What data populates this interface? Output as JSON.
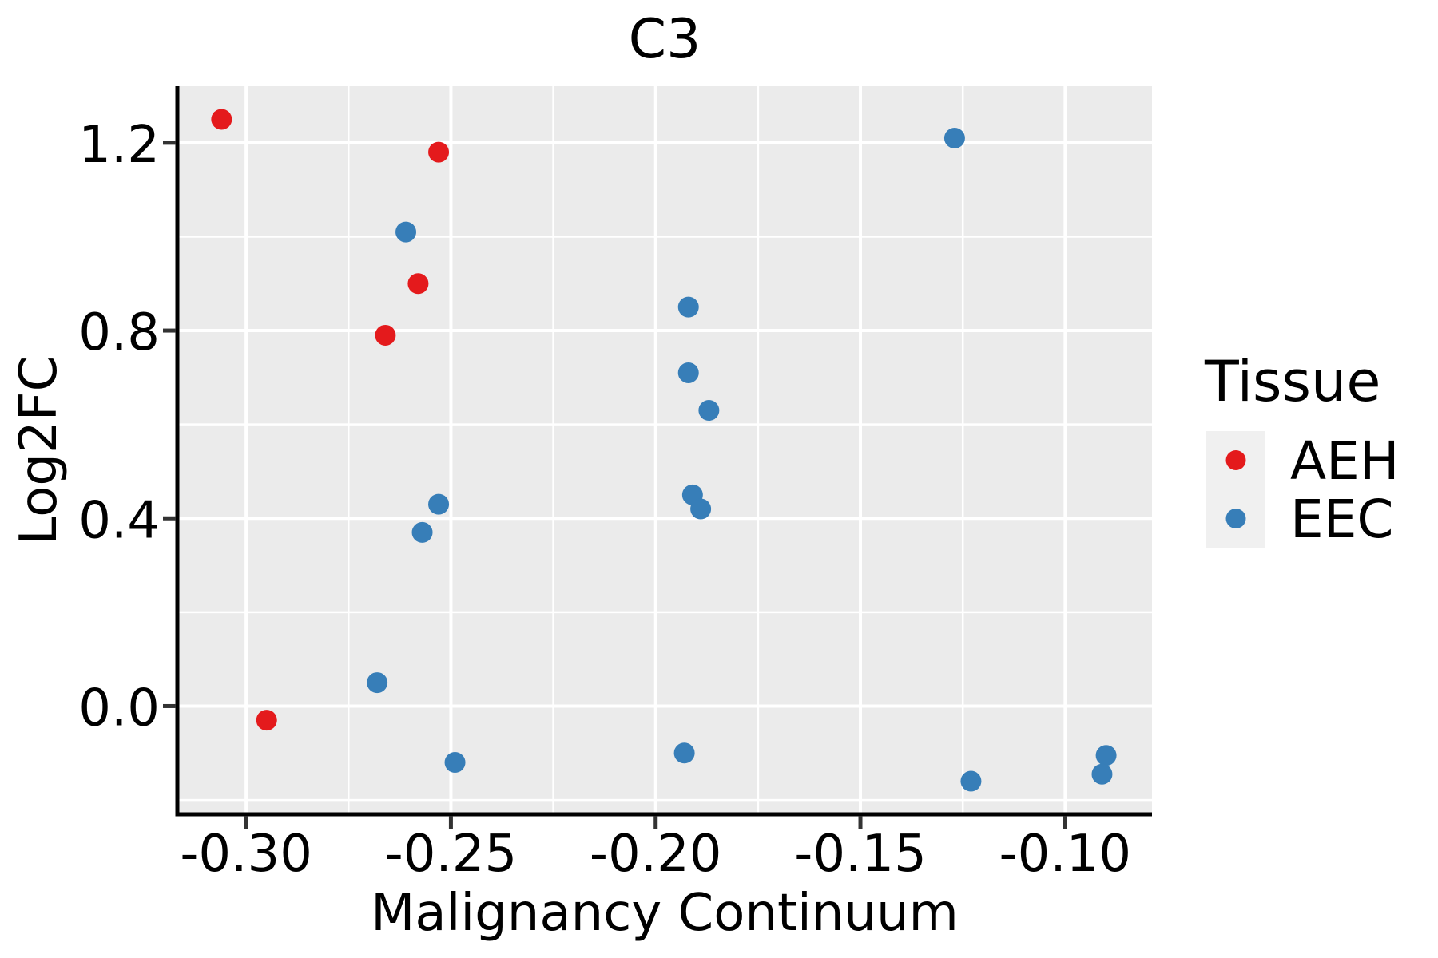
{
  "title": "C3",
  "axes": {
    "x_label": "Malignancy Continuum",
    "y_label": "Log2FC"
  },
  "legend": {
    "title": "Tissue",
    "items": [
      {
        "label": "AEH",
        "color": "#E41A1C"
      },
      {
        "label": "EEC",
        "color": "#377EB8"
      }
    ]
  },
  "colors": {
    "panel_background": "#EBEBEB",
    "gridline": "#FFFFFF",
    "axis_line": "#000000",
    "tick_mark": "#333333",
    "legend_key_background": "#F0F0F0",
    "aeh": "#E41A1C",
    "eec": "#377EB8"
  },
  "chart_data": {
    "type": "scatter",
    "title": "C3",
    "xlabel": "Malignancy Continuum",
    "ylabel": "Log2FC",
    "xlim": [
      -0.3168,
      -0.0788
    ],
    "ylim": [
      -0.2305,
      1.3205
    ],
    "x_ticks": [
      -0.3,
      -0.25,
      -0.2,
      -0.15,
      -0.1
    ],
    "x_tick_labels": [
      "-0.30",
      "-0.25",
      "-0.20",
      "-0.15",
      "-0.10"
    ],
    "x_minor_ticks": [
      -0.275,
      -0.225,
      -0.175,
      -0.125
    ],
    "y_ticks": [
      0.0,
      0.4,
      0.8,
      1.2
    ],
    "y_tick_labels": [
      "0.0",
      "0.4",
      "0.8",
      "1.2"
    ],
    "y_minor_ticks": [
      -0.2,
      0.2,
      0.6,
      1.0
    ],
    "grid": true,
    "legend_position": "right",
    "series": [
      {
        "name": "AEH",
        "color": "#E41A1C",
        "points": [
          [
            -0.306,
            1.25
          ],
          [
            -0.253,
            1.18
          ],
          [
            -0.258,
            0.9
          ],
          [
            -0.266,
            0.79
          ],
          [
            -0.295,
            -0.03
          ]
        ]
      },
      {
        "name": "EEC",
        "color": "#377EB8",
        "points": [
          [
            -0.127,
            1.21
          ],
          [
            -0.261,
            1.01
          ],
          [
            -0.192,
            0.85
          ],
          [
            -0.192,
            0.71
          ],
          [
            -0.187,
            0.63
          ],
          [
            -0.191,
            0.45
          ],
          [
            -0.189,
            0.42
          ],
          [
            -0.253,
            0.43
          ],
          [
            -0.257,
            0.37
          ],
          [
            -0.268,
            0.05
          ],
          [
            -0.249,
            -0.12
          ],
          [
            -0.193,
            -0.1
          ],
          [
            -0.123,
            -0.16
          ],
          [
            -0.09,
            -0.105
          ],
          [
            -0.091,
            -0.145
          ]
        ]
      }
    ]
  }
}
